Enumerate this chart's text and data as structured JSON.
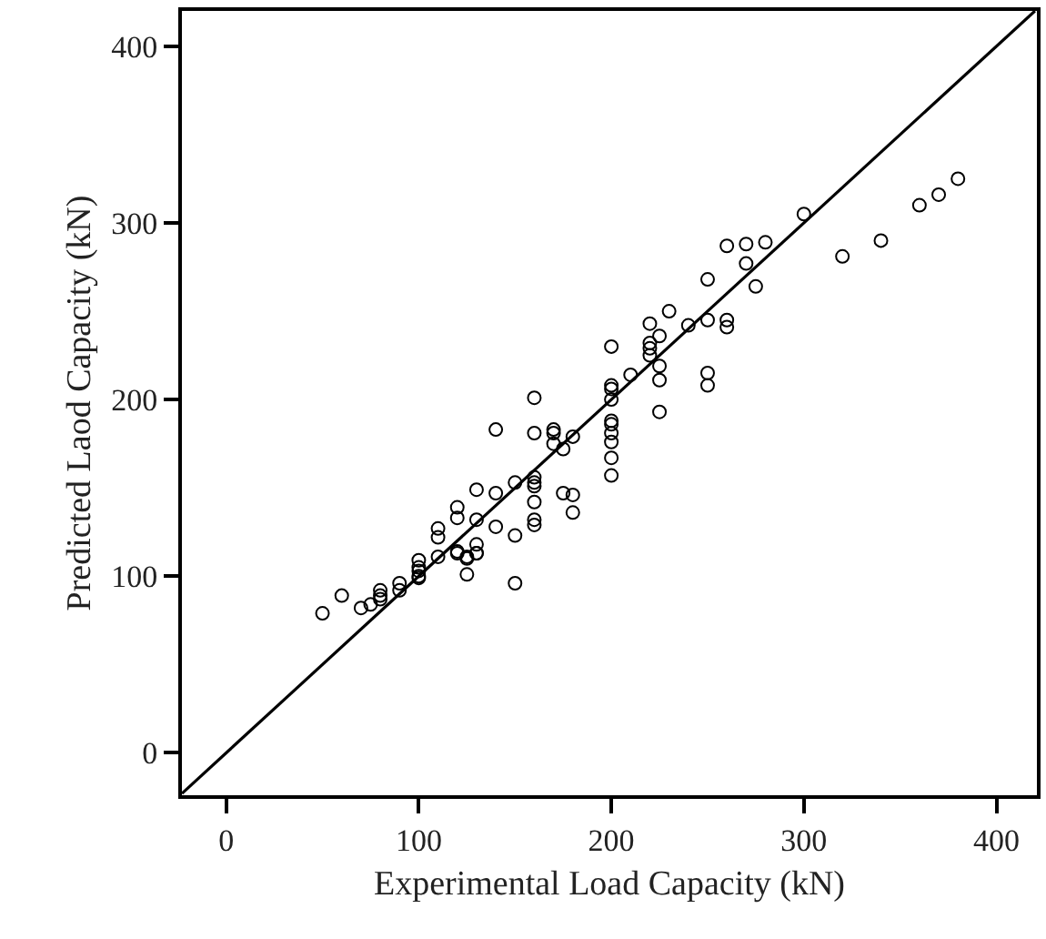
{
  "chart_data": {
    "type": "scatter",
    "xlabel": "Experimental Load Capacity (kN)",
    "ylabel": "Predicted Laod Capacity (kN)",
    "xlim": [
      -23,
      421
    ],
    "ylim": [
      -24,
      420
    ],
    "xticks": [
      0,
      100,
      200,
      300,
      400
    ],
    "yticks": [
      0,
      100,
      200,
      300,
      400
    ],
    "grid": false,
    "series": [
      {
        "marker": "circle",
        "color": "#000000",
        "x": [
          380,
          370,
          360,
          340,
          320,
          300,
          260,
          270,
          280,
          270,
          250,
          275,
          230,
          220,
          240,
          250,
          260,
          260,
          225,
          220,
          220,
          220,
          200,
          225,
          225,
          210,
          250,
          250,
          225,
          200,
          200,
          200,
          200,
          200,
          200,
          200,
          200,
          200,
          160,
          140,
          160,
          170,
          170,
          180,
          170,
          175,
          150,
          160,
          160,
          160,
          130,
          140,
          160,
          175,
          180,
          180,
          120,
          120,
          130,
          140,
          150,
          160,
          160,
          110,
          110,
          130,
          130,
          120,
          125,
          110,
          100,
          120,
          125,
          130,
          100,
          100,
          100,
          100,
          125,
          150,
          90,
          80,
          80,
          80,
          75,
          70,
          60,
          50,
          90
        ],
        "values": [
          325,
          316,
          310,
          290,
          281,
          305,
          287,
          288,
          289,
          277,
          268,
          264,
          250,
          243,
          242,
          245,
          245,
          241,
          236,
          232,
          229,
          225,
          230,
          219,
          211,
          214,
          215,
          208,
          193,
          208,
          206,
          200,
          188,
          186,
          181,
          176,
          167,
          157,
          201,
          183,
          181,
          183,
          181,
          179,
          175,
          172,
          153,
          156,
          153,
          151,
          149,
          147,
          142,
          147,
          146,
          136,
          139,
          133,
          132,
          128,
          123,
          132,
          129,
          127,
          122,
          118,
          113,
          114,
          111,
          111,
          109,
          113,
          110,
          113,
          105,
          103,
          100,
          99,
          101,
          96,
          96,
          92,
          89,
          87,
          84,
          82,
          89,
          79,
          92
        ]
      },
      {
        "type": "line",
        "marker": "none",
        "line_style": "solid",
        "color": "#000000",
        "x": [
          -23,
          420
        ],
        "values": [
          -23,
          420
        ]
      }
    ]
  }
}
